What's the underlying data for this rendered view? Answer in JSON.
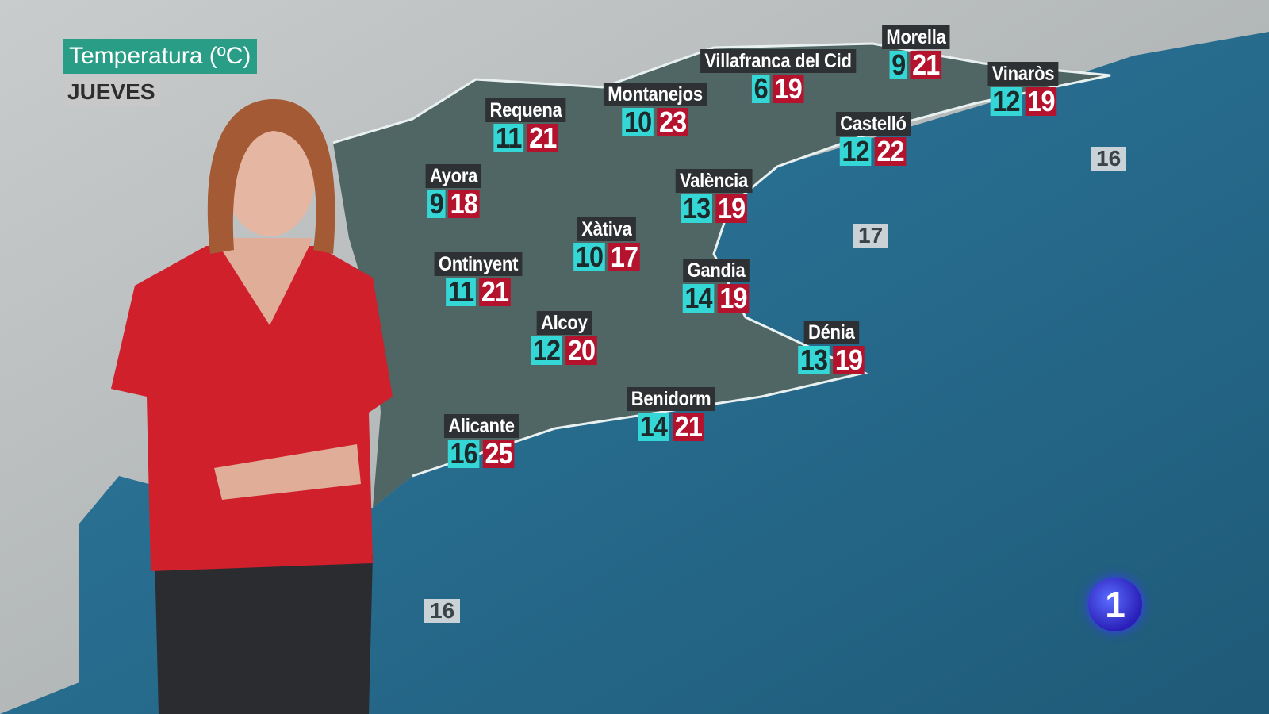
{
  "header": {
    "title": "Temperatura (ºC)",
    "day": "JUEVES"
  },
  "colors": {
    "min_temp": "#35d6d6",
    "max_temp": "#b5122e",
    "label_bg": "#2e3133",
    "title_bg": "#2a9d86",
    "sea": "#2a6a8c"
  },
  "cities": [
    {
      "name": "Morella",
      "min": "9",
      "max": "21"
    },
    {
      "name": "Villafranca del Cid",
      "min": "6",
      "max": "19"
    },
    {
      "name": "Vinaròs",
      "min": "12",
      "max": "19"
    },
    {
      "name": "Requena",
      "min": "11",
      "max": "21"
    },
    {
      "name": "Montanejos",
      "min": "10",
      "max": "23"
    },
    {
      "name": "Castelló",
      "min": "12",
      "max": "22"
    },
    {
      "name": "Ayora",
      "min": "9",
      "max": "18"
    },
    {
      "name": "València",
      "min": "13",
      "max": "19"
    },
    {
      "name": "Xàtiva",
      "min": "10",
      "max": "17"
    },
    {
      "name": "Ontinyent",
      "min": "11",
      "max": "21"
    },
    {
      "name": "Gandia",
      "min": "14",
      "max": "19"
    },
    {
      "name": "Alcoy",
      "min": "12",
      "max": "20"
    },
    {
      "name": "Dénia",
      "min": "13",
      "max": "19"
    },
    {
      "name": "Benidorm",
      "min": "14",
      "max": "21"
    },
    {
      "name": "Alicante",
      "min": "16",
      "max": "25"
    }
  ],
  "sea_temps": [
    "16",
    "17",
    "16"
  ],
  "logo": {
    "text": "1",
    "icon": "tve-channel-1-logo"
  }
}
